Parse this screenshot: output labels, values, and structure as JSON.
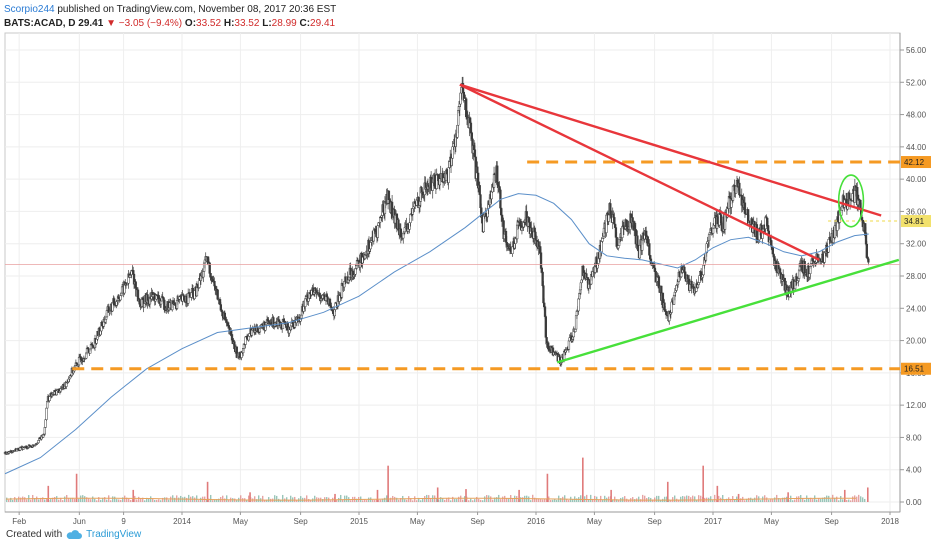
{
  "header": {
    "author": "Scorpio244",
    "published_text": "published on TradingView.com, November 08, 2017 20:36 EST",
    "symbol": "BATS:ACAD, D",
    "last": "29.41",
    "change": "−3.05 (−9.4%)",
    "o_label": "O:",
    "o_value": "33.52",
    "h_label": "H:",
    "h_value": "33.52",
    "l_label": "L:",
    "l_value": "28.99",
    "c_label": "C:",
    "c_value": "29.41"
  },
  "footer": {
    "created_with": "Created with",
    "brand": "TradingView"
  },
  "colors": {
    "candle": "#3a3a3a",
    "ma": "#5b8fc9",
    "resistance": "#e8363b",
    "support": "#47e03a",
    "level": "#f59a23",
    "dotted": "#f2e16c",
    "last_line": "#e8a0a0",
    "ellipse": "#47e03a"
  },
  "chart_data": {
    "type": "candlestick",
    "y_axis": {
      "min": 0,
      "max": 56,
      "position": "right",
      "ticks": [
        "56.00",
        "52.00",
        "48.00",
        "44.00",
        "40.00",
        "36.00",
        "32.00",
        "28.00",
        "24.00",
        "20.00",
        "16.00",
        "12.00",
        "8.00",
        "4.00",
        "0.00"
      ]
    },
    "x_axis": {
      "labels": [
        {
          "text": "Feb",
          "t": 2013.08
        },
        {
          "text": "Jun",
          "t": 2013.42
        },
        {
          "text": "9",
          "t": 2013.67
        },
        {
          "text": "2014",
          "t": 2014.0
        },
        {
          "text": "May",
          "t": 2014.33
        },
        {
          "text": "Sep",
          "t": 2014.67
        },
        {
          "text": "2015",
          "t": 2015.0
        },
        {
          "text": "May",
          "t": 2015.33
        },
        {
          "text": "Sep",
          "t": 2015.67
        },
        {
          "text": "2016",
          "t": 2016.0
        },
        {
          "text": "May",
          "t": 2016.33
        },
        {
          "text": "Sep",
          "t": 2016.67
        },
        {
          "text": "2017",
          "t": 2017.0
        },
        {
          "text": "May",
          "t": 2017.33
        },
        {
          "text": "Sep",
          "t": 2017.67
        },
        {
          "text": "2018",
          "t": 2018.0
        }
      ],
      "range": [
        2013.0,
        2018.0
      ]
    },
    "price_path": [
      [
        2013.0,
        6.0
      ],
      [
        2013.08,
        6.6
      ],
      [
        2013.16,
        7.0
      ],
      [
        2013.22,
        8.3
      ],
      [
        2013.24,
        12.8
      ],
      [
        2013.28,
        13.5
      ],
      [
        2013.33,
        14.2
      ],
      [
        2013.38,
        16.2
      ],
      [
        2013.42,
        17.5
      ],
      [
        2013.5,
        19.5
      ],
      [
        2013.58,
        23.5
      ],
      [
        2013.66,
        26.0
      ],
      [
        2013.72,
        28.5
      ],
      [
        2013.76,
        24.5
      ],
      [
        2013.84,
        25.5
      ],
      [
        2013.92,
        24.2
      ],
      [
        2014.0,
        25.0
      ],
      [
        2014.08,
        26.0
      ],
      [
        2014.14,
        30.0
      ],
      [
        2014.2,
        25.5
      ],
      [
        2014.26,
        21.5
      ],
      [
        2014.32,
        17.8
      ],
      [
        2014.38,
        21.0
      ],
      [
        2014.46,
        21.8
      ],
      [
        2014.54,
        22.5
      ],
      [
        2014.6,
        21.5
      ],
      [
        2014.66,
        22.8
      ],
      [
        2014.72,
        26.0
      ],
      [
        2014.8,
        25.5
      ],
      [
        2014.86,
        23.5
      ],
      [
        2014.92,
        27.5
      ],
      [
        2015.0,
        29.5
      ],
      [
        2015.06,
        32.0
      ],
      [
        2015.1,
        33.5
      ],
      [
        2015.16,
        38.0
      ],
      [
        2015.2,
        35.0
      ],
      [
        2015.26,
        33.0
      ],
      [
        2015.32,
        37.0
      ],
      [
        2015.38,
        39.0
      ],
      [
        2015.44,
        40.0
      ],
      [
        2015.5,
        40.5
      ],
      [
        2015.54,
        44.5
      ],
      [
        2015.58,
        51.0
      ],
      [
        2015.62,
        47.0
      ],
      [
        2015.66,
        41.0
      ],
      [
        2015.7,
        34.5
      ],
      [
        2015.74,
        37.5
      ],
      [
        2015.78,
        41.0
      ],
      [
        2015.82,
        33.0
      ],
      [
        2015.86,
        31.0
      ],
      [
        2015.9,
        34.0
      ],
      [
        2015.94,
        35.5
      ],
      [
        2015.98,
        33.5
      ],
      [
        2016.02,
        32.0
      ],
      [
        2016.06,
        19.5
      ],
      [
        2016.1,
        18.5
      ],
      [
        2016.14,
        17.5
      ],
      [
        2016.18,
        19.2
      ],
      [
        2016.22,
        21.5
      ],
      [
        2016.26,
        28.5
      ],
      [
        2016.3,
        27.0
      ],
      [
        2016.34,
        29.5
      ],
      [
        2016.38,
        33.0
      ],
      [
        2016.42,
        36.5
      ],
      [
        2016.46,
        31.5
      ],
      [
        2016.5,
        34.0
      ],
      [
        2016.54,
        35.0
      ],
      [
        2016.58,
        31.0
      ],
      [
        2016.62,
        33.5
      ],
      [
        2016.66,
        29.0
      ],
      [
        2016.7,
        26.5
      ],
      [
        2016.74,
        22.5
      ],
      [
        2016.78,
        25.0
      ],
      [
        2016.82,
        29.0
      ],
      [
        2016.86,
        27.0
      ],
      [
        2016.9,
        26.0
      ],
      [
        2016.94,
        28.5
      ],
      [
        2016.98,
        33.0
      ],
      [
        2017.02,
        35.0
      ],
      [
        2017.06,
        34.5
      ],
      [
        2017.1,
        37.5
      ],
      [
        2017.14,
        39.5
      ],
      [
        2017.18,
        36.0
      ],
      [
        2017.22,
        34.5
      ],
      [
        2017.26,
        33.0
      ],
      [
        2017.3,
        34.5
      ],
      [
        2017.34,
        30.0
      ],
      [
        2017.38,
        28.5
      ],
      [
        2017.42,
        26.0
      ],
      [
        2017.46,
        27.0
      ],
      [
        2017.5,
        29.5
      ],
      [
        2017.54,
        28.5
      ],
      [
        2017.58,
        30.5
      ],
      [
        2017.62,
        30.0
      ],
      [
        2017.66,
        32.0
      ],
      [
        2017.7,
        34.5
      ],
      [
        2017.74,
        37.5
      ],
      [
        2017.78,
        37.0
      ],
      [
        2017.8,
        38.5
      ],
      [
        2017.82,
        37.5
      ],
      [
        2017.84,
        35.5
      ],
      [
        2017.86,
        33.5
      ],
      [
        2017.87,
        30.0
      ],
      [
        2017.88,
        29.41
      ]
    ],
    "moving_average": [
      [
        2013.0,
        3.5
      ],
      [
        2013.2,
        5.5
      ],
      [
        2013.4,
        9.0
      ],
      [
        2013.6,
        13.0
      ],
      [
        2013.8,
        16.5
      ],
      [
        2014.0,
        19.0
      ],
      [
        2014.2,
        21.0
      ],
      [
        2014.4,
        21.6
      ],
      [
        2014.6,
        22.2
      ],
      [
        2014.8,
        23.5
      ],
      [
        2015.0,
        25.5
      ],
      [
        2015.2,
        28.5
      ],
      [
        2015.4,
        31.0
      ],
      [
        2015.6,
        34.0
      ],
      [
        2015.8,
        37.5
      ],
      [
        2015.9,
        38.2
      ],
      [
        2016.0,
        38.0
      ],
      [
        2016.1,
        37.0
      ],
      [
        2016.2,
        35.0
      ],
      [
        2016.3,
        32.0
      ],
      [
        2016.4,
        30.5
      ],
      [
        2016.5,
        30.2
      ],
      [
        2016.6,
        30.0
      ],
      [
        2016.7,
        29.5
      ],
      [
        2016.8,
        29.0
      ],
      [
        2016.9,
        30.0
      ],
      [
        2017.0,
        31.5
      ],
      [
        2017.1,
        32.5
      ],
      [
        2017.2,
        32.8
      ],
      [
        2017.3,
        32.0
      ],
      [
        2017.4,
        31.0
      ],
      [
        2017.5,
        30.5
      ],
      [
        2017.6,
        31.0
      ],
      [
        2017.7,
        32.2
      ],
      [
        2017.8,
        33.0
      ],
      [
        2017.88,
        33.2
      ]
    ],
    "trendlines": [
      {
        "kind": "resistance",
        "from": [
          2015.57,
          51.7
        ],
        "to": [
          2017.95,
          35.5
        ]
      },
      {
        "kind": "resistance",
        "from": [
          2015.57,
          51.7
        ],
        "to": [
          2017.6,
          30.0
        ]
      },
      {
        "kind": "support",
        "from": [
          2016.12,
          17.3
        ],
        "to": [
          2018.05,
          30.0
        ]
      }
    ],
    "horizontal_levels": [
      {
        "value": 42.12,
        "label": "42.12",
        "style": "dashed",
        "from": 2015.95
      },
      {
        "value": 16.51,
        "label": "16.51",
        "style": "dashed",
        "from": 2013.38
      },
      {
        "value": 34.81,
        "label": "34.81",
        "style": "dotted",
        "from": 2017.65
      }
    ],
    "last_price": 29.41,
    "highlight_ellipse": {
      "center": [
        2017.78,
        37.3
      ],
      "rx_years": 0.07,
      "ry_price": 3.2
    },
    "volume_spikes": [
      {
        "t": 2013.24,
        "v": 2.0
      },
      {
        "t": 2013.4,
        "v": 3.5
      },
      {
        "t": 2013.72,
        "v": 1.5
      },
      {
        "t": 2014.14,
        "v": 2.5
      },
      {
        "t": 2014.38,
        "v": 1.2
      },
      {
        "t": 2014.86,
        "v": 1.0
      },
      {
        "t": 2015.1,
        "v": 1.5
      },
      {
        "t": 2015.16,
        "v": 4.5
      },
      {
        "t": 2015.44,
        "v": 1.8
      },
      {
        "t": 2015.6,
        "v": 1.6
      },
      {
        "t": 2015.9,
        "v": 1.5
      },
      {
        "t": 2016.06,
        "v": 3.5
      },
      {
        "t": 2016.26,
        "v": 5.5
      },
      {
        "t": 2016.42,
        "v": 1.5
      },
      {
        "t": 2016.74,
        "v": 2.5
      },
      {
        "t": 2016.94,
        "v": 4.5
      },
      {
        "t": 2017.02,
        "v": 2.0
      },
      {
        "t": 2017.14,
        "v": 1.0
      },
      {
        "t": 2017.42,
        "v": 1.2
      },
      {
        "t": 2017.74,
        "v": 1.5
      },
      {
        "t": 2017.87,
        "v": 1.8
      }
    ]
  }
}
